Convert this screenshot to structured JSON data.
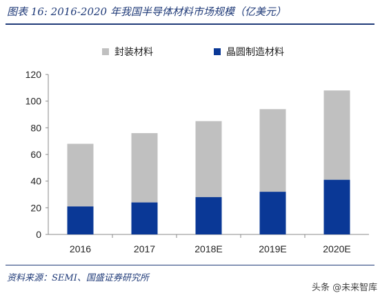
{
  "figure": {
    "title": "图表 16:  2016-2020 年我国半导体材料市场规模（亿美元）",
    "source": "资料来源：SEMI、国盛证券研究所",
    "watermark": "头条 @未来智库"
  },
  "colors": {
    "packaging": "#c0c0c0",
    "wafer": "#0a3896",
    "title_text": "#1f3a78"
  },
  "chart_data": {
    "type": "bar",
    "stacked": true,
    "categories": [
      "2016",
      "2017",
      "2018E",
      "2019E",
      "2020E"
    ],
    "series": [
      {
        "name": "晶圆制造材料",
        "values": [
          21,
          24,
          28,
          32,
          41
        ]
      },
      {
        "name": "封装材料",
        "values": [
          47,
          52,
          57,
          62,
          67
        ]
      }
    ],
    "totals": [
      68,
      76,
      85,
      94,
      108
    ],
    "ylim": [
      0,
      120
    ],
    "yticks": [
      0,
      20,
      40,
      60,
      80,
      100,
      120
    ],
    "grid": false,
    "legend": "top"
  }
}
